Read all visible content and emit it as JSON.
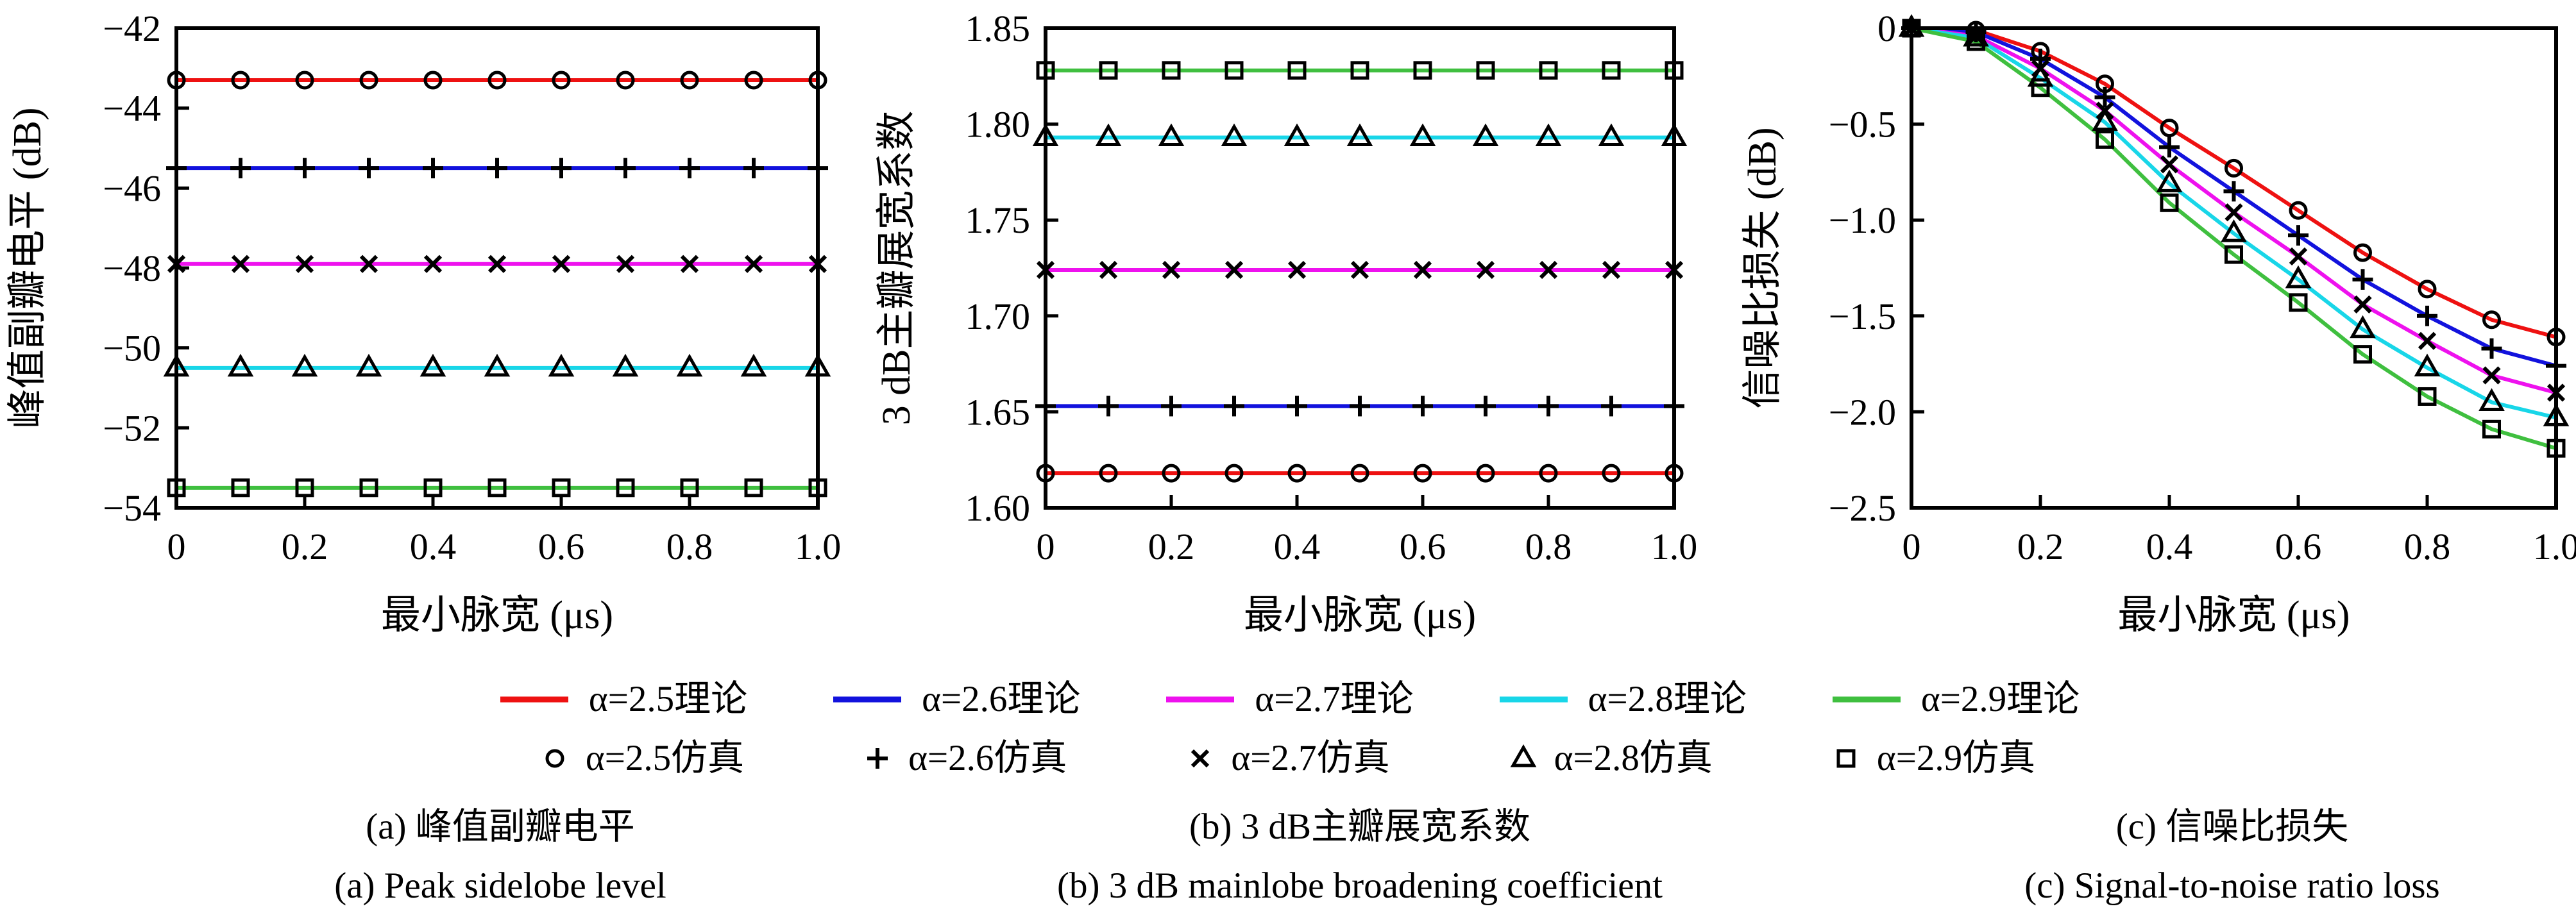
{
  "figure": {
    "x_label": "最小脉宽 (μs)",
    "colors": {
      "alpha_2_5": "#ee1111",
      "alpha_2_6": "#1212dd",
      "alpha_2_7": "#ee11ee",
      "alpha_2_8": "#18d6e8",
      "alpha_2_9": "#3fbf3f",
      "axis": "#000000"
    },
    "legend": {
      "theory": [
        {
          "label": "α=2.5理论",
          "color": "#ee1111"
        },
        {
          "label": "α=2.6理论",
          "color": "#1212dd"
        },
        {
          "label": "α=2.7理论",
          "color": "#ee11ee"
        },
        {
          "label": "α=2.8理论",
          "color": "#18d6e8"
        },
        {
          "label": "α=2.9理论",
          "color": "#3fbf3f"
        }
      ],
      "sim": [
        {
          "label": "α=2.5仿真",
          "marker": "circle"
        },
        {
          "label": "α=2.6仿真",
          "marker": "plus"
        },
        {
          "label": "α=2.7仿真",
          "marker": "x"
        },
        {
          "label": "α=2.8仿真",
          "marker": "triangle"
        },
        {
          "label": "α=2.9仿真",
          "marker": "square"
        }
      ]
    }
  },
  "chart_data": [
    {
      "type": "line",
      "caption_cn": "(a) 峰值副瓣电平",
      "caption_en": "(a) Peak sidelobe level",
      "xlabel": "最小脉宽 (μs)",
      "ylabel": "峰值副瓣电平 (dB)",
      "xlim": [
        0,
        1.0
      ],
      "ylim": [
        -54,
        -42
      ],
      "xticks": [
        0,
        0.2,
        0.4,
        0.6,
        0.8,
        1.0
      ],
      "xtick_labels": [
        "0",
        "0.2",
        "0.4",
        "0.6",
        "0.8",
        "1.0"
      ],
      "yticks": [
        -42,
        -44,
        -46,
        -48,
        -50,
        -52,
        -54
      ],
      "ytick_labels": [
        "−42",
        "−44",
        "−46",
        "−48",
        "−50",
        "−52",
        "−54"
      ],
      "x": [
        0,
        0.1,
        0.2,
        0.3,
        0.4,
        0.5,
        0.6,
        0.7,
        0.8,
        0.9,
        1.0
      ],
      "grid": false,
      "series": [
        {
          "name": "α=2.5",
          "color": "#ee1111",
          "marker": "circle",
          "constant": -43.3
        },
        {
          "name": "α=2.6",
          "color": "#1212dd",
          "marker": "plus",
          "constant": -45.5
        },
        {
          "name": "α=2.7",
          "color": "#ee11ee",
          "marker": "x",
          "constant": -47.9
        },
        {
          "name": "α=2.8",
          "color": "#18d6e8",
          "marker": "triangle",
          "constant": -50.5
        },
        {
          "name": "α=2.9",
          "color": "#3fbf3f",
          "marker": "square",
          "constant": -53.5
        }
      ]
    },
    {
      "type": "line",
      "caption_cn": "(b) 3 dB主瓣展宽系数",
      "caption_en": "(b) 3 dB mainlobe broadening coefficient",
      "xlabel": "最小脉宽 (μs)",
      "ylabel": "3 dB主瓣展宽系数",
      "xlim": [
        0,
        1.0
      ],
      "ylim": [
        1.6,
        1.85
      ],
      "xticks": [
        0,
        0.2,
        0.4,
        0.6,
        0.8,
        1.0
      ],
      "xtick_labels": [
        "0",
        "0.2",
        "0.4",
        "0.6",
        "0.8",
        "1.0"
      ],
      "yticks": [
        1.85,
        1.8,
        1.75,
        1.7,
        1.65,
        1.6
      ],
      "ytick_labels": [
        "1.85",
        "1.80",
        "1.75",
        "1.70",
        "1.65",
        "1.60"
      ],
      "x": [
        0,
        0.1,
        0.2,
        0.3,
        0.4,
        0.5,
        0.6,
        0.7,
        0.8,
        0.9,
        1.0
      ],
      "grid": false,
      "series": [
        {
          "name": "α=2.5",
          "color": "#ee1111",
          "marker": "circle",
          "constant": 1.618
        },
        {
          "name": "α=2.6",
          "color": "#1212dd",
          "marker": "plus",
          "constant": 1.653
        },
        {
          "name": "α=2.7",
          "color": "#ee11ee",
          "marker": "x",
          "constant": 1.724
        },
        {
          "name": "α=2.8",
          "color": "#18d6e8",
          "marker": "triangle",
          "constant": 1.793
        },
        {
          "name": "α=2.9",
          "color": "#3fbf3f",
          "marker": "square",
          "constant": 1.828
        }
      ]
    },
    {
      "type": "line",
      "caption_cn": "(c) 信噪比损失",
      "caption_en": "(c) Signal-to-noise ratio loss",
      "xlabel": "最小脉宽 (μs)",
      "ylabel": "信噪比损失 (dB)",
      "xlim": [
        0,
        1.0
      ],
      "ylim": [
        -2.5,
        0
      ],
      "xticks": [
        0,
        0.2,
        0.4,
        0.6,
        0.8,
        1.0
      ],
      "xtick_labels": [
        "0",
        "0.2",
        "0.4",
        "0.6",
        "0.8",
        "1.0"
      ],
      "yticks": [
        0,
        -0.5,
        -1.0,
        -1.5,
        -2.0,
        -2.5
      ],
      "ytick_labels": [
        "0",
        "−0.5",
        "−1.0",
        "−1.5",
        "−2.0",
        "−2.5"
      ],
      "x": [
        0,
        0.1,
        0.2,
        0.3,
        0.4,
        0.5,
        0.6,
        0.7,
        0.8,
        0.9,
        1.0
      ],
      "grid": false,
      "series": [
        {
          "name": "α=2.5",
          "color": "#ee1111",
          "marker": "circle",
          "values": [
            0,
            -0.01,
            -0.12,
            -0.29,
            -0.52,
            -0.73,
            -0.95,
            -1.17,
            -1.36,
            -1.52,
            -1.61
          ]
        },
        {
          "name": "α=2.6",
          "color": "#1212dd",
          "marker": "plus",
          "values": [
            0,
            -0.02,
            -0.16,
            -0.36,
            -0.62,
            -0.85,
            -1.08,
            -1.31,
            -1.5,
            -1.67,
            -1.76
          ]
        },
        {
          "name": "α=2.7",
          "color": "#ee11ee",
          "marker": "x",
          "values": [
            0,
            -0.04,
            -0.21,
            -0.43,
            -0.71,
            -0.96,
            -1.19,
            -1.44,
            -1.63,
            -1.81,
            -1.9
          ]
        },
        {
          "name": "α=2.8",
          "color": "#18d6e8",
          "marker": "triangle",
          "values": [
            0,
            -0.05,
            -0.26,
            -0.49,
            -0.81,
            -1.07,
            -1.31,
            -1.57,
            -1.77,
            -1.95,
            -2.03
          ]
        },
        {
          "name": "α=2.9",
          "color": "#3fbf3f",
          "marker": "square",
          "values": [
            0,
            -0.07,
            -0.31,
            -0.58,
            -0.91,
            -1.18,
            -1.43,
            -1.7,
            -1.92,
            -2.09,
            -2.19
          ]
        }
      ]
    }
  ]
}
